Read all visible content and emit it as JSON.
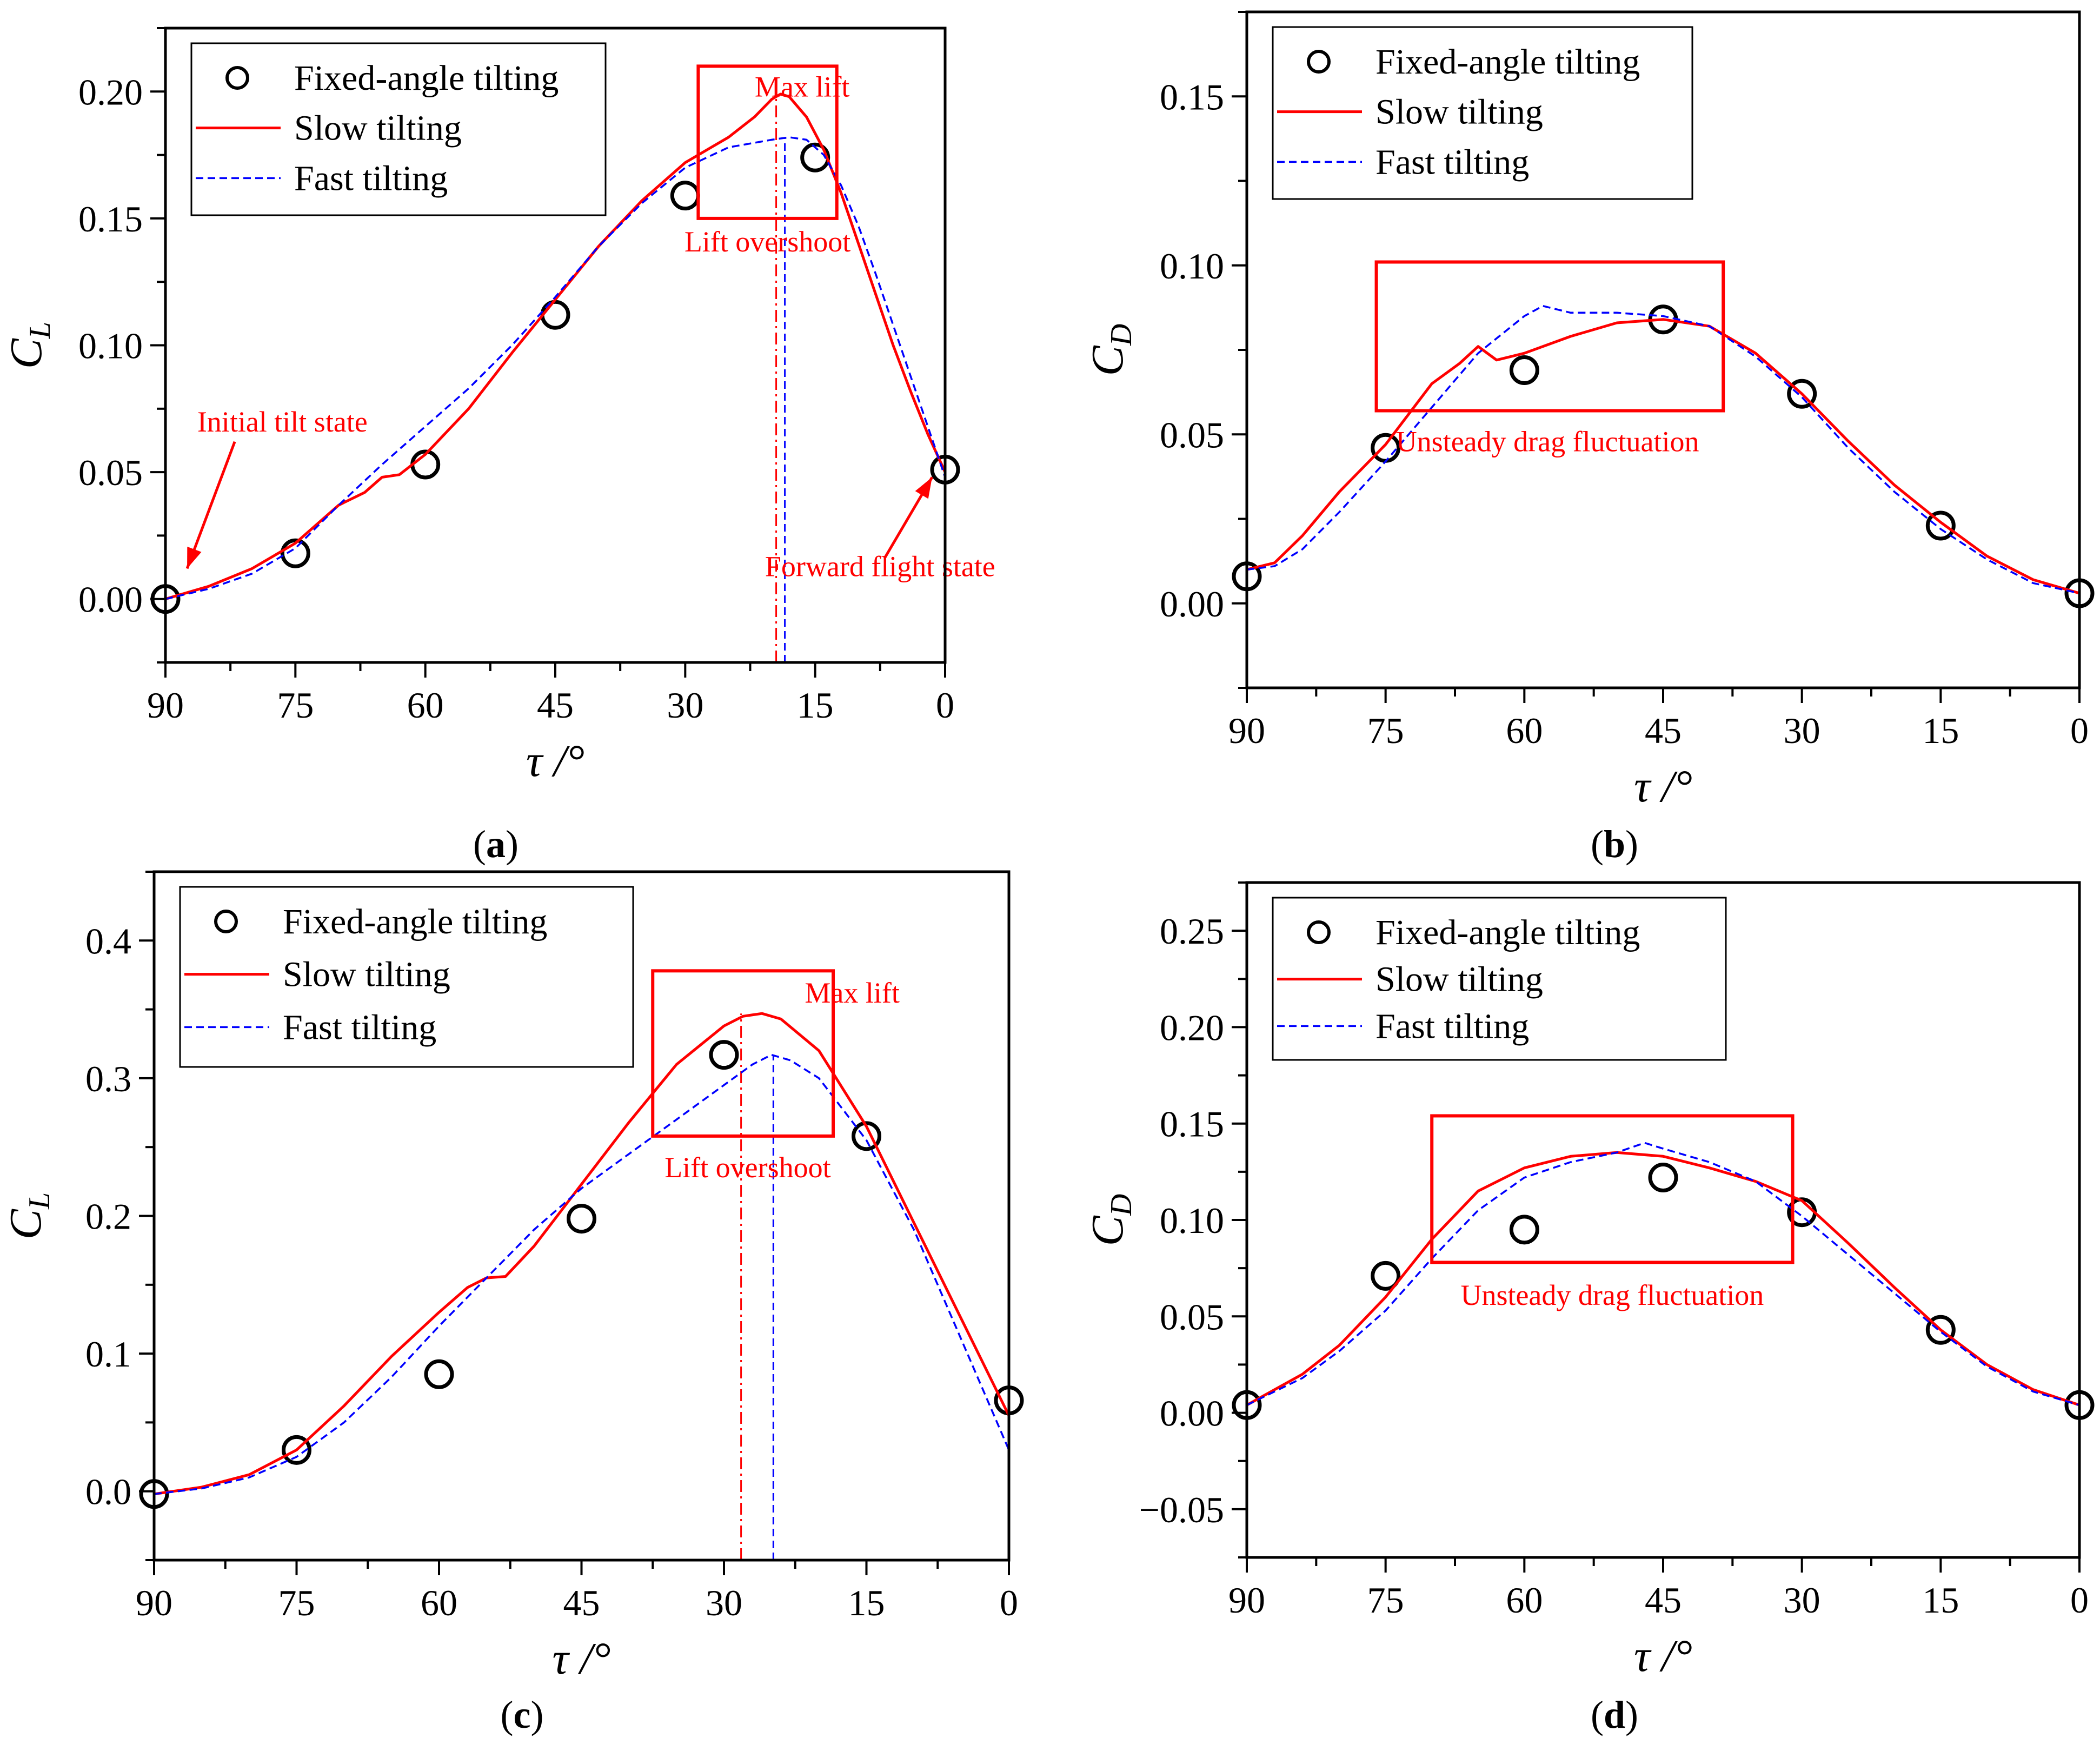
{
  "legend": {
    "fixed": "Fixed-angle tilting",
    "slow": "Slow tilting",
    "fast": "Fast tilting"
  },
  "colors": {
    "fixed": "#000000",
    "slow": "#ff0000",
    "fast": "#0000ff",
    "annotation": "#ff0000"
  },
  "chart_data": [
    {
      "type": "line",
      "panel": "(a)",
      "xlabel": "τ /°",
      "ylabel": "C_L",
      "xlim": [
        90,
        0
      ],
      "ylim": [
        -0.025,
        0.225
      ],
      "xticks": [
        90,
        75,
        60,
        45,
        30,
        15,
        0
      ],
      "yticks": [
        0.0,
        0.05,
        0.1,
        0.15,
        0.2
      ],
      "ytick_labels": [
        "0.00",
        "0.05",
        "0.10",
        "0.15",
        "0.20"
      ],
      "legend_position": "top-left",
      "series": [
        {
          "name": "Fixed-angle tilting",
          "style": "markers",
          "x": [
            90,
            75,
            60,
            45,
            30,
            15,
            0
          ],
          "y": [
            0.0,
            0.018,
            0.053,
            0.112,
            0.159,
            0.174,
            0.051
          ]
        },
        {
          "name": "Slow tilting",
          "style": "solid",
          "x": [
            90,
            85,
            80,
            75,
            70,
            67,
            65,
            63,
            60,
            55,
            50,
            45,
            40,
            35,
            30,
            27,
            25,
            22,
            20,
            19,
            18,
            16,
            14,
            12,
            10,
            8,
            6,
            4,
            2,
            0
          ],
          "y": [
            0.0,
            0.005,
            0.012,
            0.022,
            0.037,
            0.042,
            0.048,
            0.049,
            0.057,
            0.075,
            0.097,
            0.118,
            0.139,
            0.157,
            0.172,
            0.178,
            0.182,
            0.19,
            0.197,
            0.199,
            0.198,
            0.19,
            0.177,
            0.16,
            0.14,
            0.12,
            0.1,
            0.082,
            0.065,
            0.05
          ]
        },
        {
          "name": "Fast tilting",
          "style": "dashed",
          "x": [
            90,
            85,
            80,
            75,
            70,
            65,
            60,
            55,
            50,
            45,
            40,
            35,
            30,
            25,
            20,
            18,
            16,
            14,
            12,
            10,
            8,
            6,
            4,
            2,
            0
          ],
          "y": [
            0.0,
            0.004,
            0.01,
            0.02,
            0.037,
            0.053,
            0.068,
            0.083,
            0.1,
            0.119,
            0.139,
            0.156,
            0.17,
            0.178,
            0.181,
            0.182,
            0.181,
            0.175,
            0.163,
            0.147,
            0.128,
            0.108,
            0.088,
            0.068,
            0.048
          ]
        }
      ],
      "vlines": [
        {
          "x": 19.5,
          "color": "#ff0000"
        },
        {
          "x": 18.5,
          "color": "#0000ff"
        }
      ],
      "box": {
        "x": [
          28.5,
          12.5
        ],
        "y": [
          0.15,
          0.21
        ]
      },
      "annotations": [
        {
          "text": "Max lift",
          "x": 16.5,
          "y": 0.198
        },
        {
          "text": "Lift overshoot",
          "x": 20.5,
          "y": 0.137
        },
        {
          "text": "Initial tilt state",
          "x": 76.5,
          "y": 0.066
        },
        {
          "text": "Forward flight state",
          "x": 7.5,
          "y": 0.009
        }
      ],
      "arrows": [
        {
          "from": [
            82,
            0.062
          ],
          "to": [
            87.5,
            0.012
          ]
        },
        {
          "from": [
            7,
            0.016
          ],
          "to": [
            1.5,
            0.048
          ]
        }
      ]
    },
    {
      "type": "line",
      "panel": "(b)",
      "xlabel": "τ /°",
      "ylabel": "C_D",
      "xlim": [
        90,
        0
      ],
      "ylim": [
        -0.025,
        0.175
      ],
      "xticks": [
        90,
        75,
        60,
        45,
        30,
        15,
        0
      ],
      "yticks": [
        0.0,
        0.05,
        0.1,
        0.15
      ],
      "ytick_labels": [
        "0.00",
        "0.05",
        "0.10",
        "0.15"
      ],
      "legend_position": "top-left",
      "series": [
        {
          "name": "Fixed-angle tilting",
          "style": "markers",
          "x": [
            90,
            75,
            60,
            45,
            30,
            15,
            0
          ],
          "y": [
            0.008,
            0.046,
            0.069,
            0.084,
            0.062,
            0.023,
            0.003
          ]
        },
        {
          "name": "Slow tilting",
          "style": "solid",
          "x": [
            90,
            87,
            84,
            80,
            75,
            70,
            67,
            65,
            63,
            60,
            55,
            50,
            45,
            40,
            35,
            30,
            25,
            20,
            15,
            10,
            5,
            0
          ],
          "y": [
            0.01,
            0.012,
            0.02,
            0.033,
            0.047,
            0.065,
            0.071,
            0.076,
            0.072,
            0.074,
            0.079,
            0.083,
            0.084,
            0.082,
            0.074,
            0.062,
            0.048,
            0.035,
            0.024,
            0.014,
            0.007,
            0.003
          ]
        },
        {
          "name": "Fast tilting",
          "style": "dashed",
          "x": [
            90,
            87,
            84,
            80,
            75,
            70,
            65,
            60,
            58,
            55,
            50,
            45,
            40,
            35,
            30,
            25,
            20,
            15,
            10,
            5,
            0
          ],
          "y": [
            0.01,
            0.011,
            0.016,
            0.027,
            0.042,
            0.058,
            0.074,
            0.085,
            0.088,
            0.086,
            0.086,
            0.085,
            0.082,
            0.073,
            0.061,
            0.046,
            0.033,
            0.022,
            0.013,
            0.006,
            0.003
          ]
        }
      ],
      "box": {
        "x": [
          76,
          38.5
        ],
        "y": [
          0.057,
          0.101
        ]
      },
      "annotations": [
        {
          "text": "Unsteady drag fluctuation",
          "x": 57.5,
          "y": 0.045
        }
      ]
    },
    {
      "type": "line",
      "panel": "(c)",
      "xlabel": "τ /°",
      "ylabel": "C_L",
      "xlim": [
        90,
        0
      ],
      "ylim": [
        -0.05,
        0.45
      ],
      "xticks": [
        90,
        75,
        60,
        45,
        30,
        15,
        0
      ],
      "yticks": [
        0.0,
        0.1,
        0.2,
        0.3,
        0.4
      ],
      "ytick_labels": [
        "0.0",
        "0.1",
        "0.2",
        "0.3",
        "0.4"
      ],
      "legend_position": "top-left",
      "series": [
        {
          "name": "Fixed-angle tilting",
          "style": "markers",
          "x": [
            90,
            75,
            60,
            45,
            30,
            15,
            0
          ],
          "y": [
            -0.002,
            0.03,
            0.085,
            0.198,
            0.317,
            0.258,
            0.066
          ]
        },
        {
          "name": "Slow tilting",
          "style": "solid",
          "x": [
            90,
            85,
            80,
            75,
            70,
            65,
            60,
            57,
            55,
            53,
            50,
            45,
            40,
            35,
            30,
            28,
            26,
            24,
            20,
            15,
            10,
            5,
            0
          ],
          "y": [
            -0.002,
            0.003,
            0.012,
            0.03,
            0.062,
            0.098,
            0.13,
            0.148,
            0.155,
            0.156,
            0.178,
            0.223,
            0.268,
            0.31,
            0.338,
            0.345,
            0.347,
            0.343,
            0.32,
            0.265,
            0.195,
            0.125,
            0.055
          ]
        },
        {
          "name": "Fast tilting",
          "style": "dashed",
          "x": [
            90,
            85,
            80,
            75,
            70,
            65,
            60,
            55,
            50,
            45,
            40,
            35,
            30,
            27,
            25,
            23,
            20,
            15,
            10,
            5,
            0
          ],
          "y": [
            -0.002,
            0.002,
            0.01,
            0.025,
            0.05,
            0.083,
            0.12,
            0.155,
            0.19,
            0.22,
            0.245,
            0.27,
            0.295,
            0.31,
            0.317,
            0.313,
            0.3,
            0.255,
            0.19,
            0.11,
            0.03
          ]
        }
      ],
      "vlines": [
        {
          "x": 28.2,
          "color": "#ff0000"
        },
        {
          "x": 24.8,
          "color": "#0000ff"
        }
      ],
      "box": {
        "x": [
          37.5,
          18.5
        ],
        "y": [
          0.258,
          0.378
        ]
      },
      "annotations": [
        {
          "text": "Max lift",
          "x": 16.5,
          "y": 0.355
        },
        {
          "text": "Lift overshoot",
          "x": 27.5,
          "y": 0.228
        }
      ]
    },
    {
      "type": "line",
      "panel": "(d)",
      "xlabel": "τ /°",
      "ylabel": "C_D",
      "xlim": [
        90,
        0
      ],
      "ylim": [
        -0.075,
        0.275
      ],
      "xticks": [
        90,
        75,
        60,
        45,
        30,
        15,
        0
      ],
      "yticks": [
        -0.05,
        0.0,
        0.05,
        0.1,
        0.15,
        0.2,
        0.25
      ],
      "ytick_labels": [
        "−0.05",
        "0.00",
        "0.05",
        "0.10",
        "0.15",
        "0.20",
        "0.25"
      ],
      "legend_position": "top-left",
      "series": [
        {
          "name": "Fixed-angle tilting",
          "style": "markers",
          "x": [
            90,
            75,
            60,
            45,
            30,
            15,
            0
          ],
          "y": [
            0.004,
            0.071,
            0.095,
            0.122,
            0.104,
            0.043,
            0.004
          ]
        },
        {
          "name": "Slow tilting",
          "style": "solid",
          "x": [
            90,
            87,
            84,
            80,
            75,
            70,
            65,
            60,
            55,
            50,
            45,
            40,
            35,
            30,
            25,
            20,
            15,
            10,
            5,
            0
          ],
          "y": [
            0.004,
            0.012,
            0.02,
            0.035,
            0.06,
            0.09,
            0.115,
            0.127,
            0.133,
            0.135,
            0.133,
            0.127,
            0.12,
            0.11,
            0.088,
            0.065,
            0.043,
            0.025,
            0.012,
            0.004
          ]
        },
        {
          "name": "Fast tilting",
          "style": "dashed",
          "x": [
            90,
            87,
            84,
            80,
            75,
            70,
            65,
            60,
            55,
            50,
            47,
            45,
            40,
            35,
            30,
            25,
            20,
            15,
            10,
            5,
            0
          ],
          "y": [
            0.004,
            0.011,
            0.018,
            0.032,
            0.053,
            0.08,
            0.105,
            0.122,
            0.13,
            0.135,
            0.14,
            0.137,
            0.13,
            0.12,
            0.102,
            0.082,
            0.062,
            0.042,
            0.024,
            0.011,
            0.004
          ]
        }
      ],
      "box": {
        "x": [
          70,
          31
        ],
        "y": [
          0.078,
          0.154
        ]
      },
      "annotations": [
        {
          "text": "Unsteady drag fluctuation",
          "x": 50.5,
          "y": 0.056
        }
      ]
    }
  ]
}
